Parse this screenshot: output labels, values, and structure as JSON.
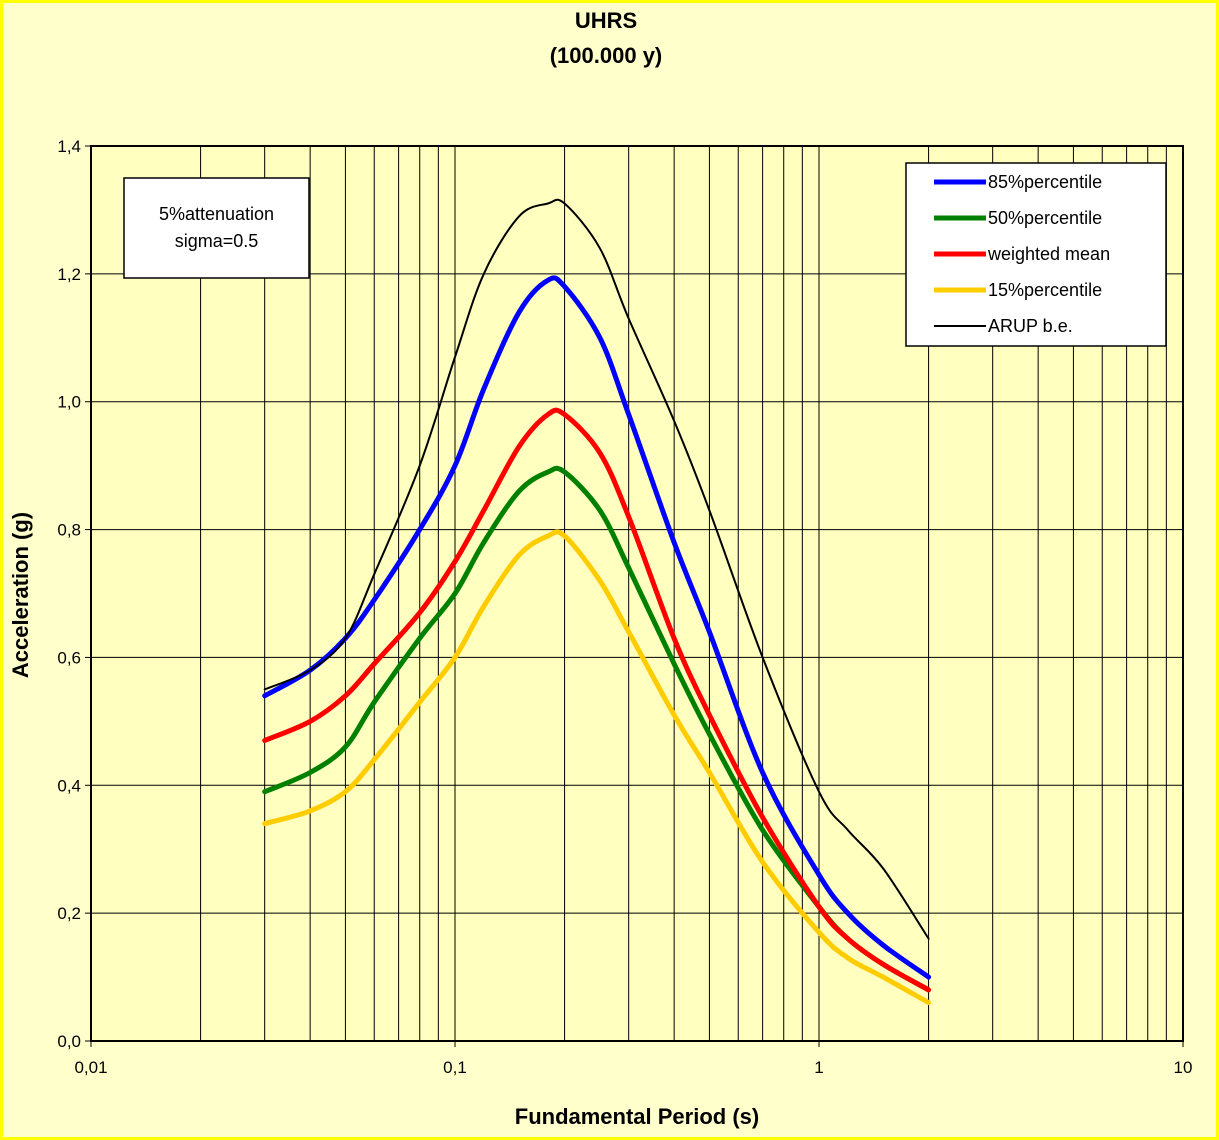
{
  "chart_data": {
    "type": "line",
    "title": "UHRS",
    "subtitle": "(100.000 y)",
    "xlabel": "Fundamental Period (s)",
    "ylabel": "Acceleration (g)",
    "x_scale": "log",
    "xlim": [
      0.01,
      10
    ],
    "ylim": [
      0,
      1.4
    ],
    "x_ticks": [
      0.01,
      0.1,
      1,
      10
    ],
    "x_tick_labels": [
      "0,01",
      "0,1",
      "1",
      "10"
    ],
    "y_ticks": [
      0,
      0.2,
      0.4,
      0.6,
      0.8,
      1.0,
      1.2,
      1.4
    ],
    "y_tick_labels": [
      "0,0",
      "0,2",
      "0,4",
      "0,6",
      "0,8",
      "1,0",
      "1,2",
      "1,4"
    ],
    "grid": true,
    "legend_position": "top-right",
    "annotation": [
      "5%attenuation",
      "sigma=0.5"
    ],
    "x": [
      0.03,
      0.04,
      0.05,
      0.06,
      0.08,
      0.1,
      0.12,
      0.15,
      0.18,
      0.2,
      0.25,
      0.3,
      0.4,
      0.5,
      0.7,
      1.0,
      1.2,
      1.5,
      2.0
    ],
    "series": [
      {
        "name": "85%percentile",
        "color": "#0000ff",
        "values": [
          0.54,
          0.58,
          0.63,
          0.69,
          0.8,
          0.9,
          1.02,
          1.14,
          1.19,
          1.18,
          1.1,
          0.98,
          0.78,
          0.64,
          0.42,
          0.26,
          0.2,
          0.15,
          0.1
        ]
      },
      {
        "name": "50%percentile",
        "color": "#008000",
        "values": [
          0.39,
          0.42,
          0.46,
          0.53,
          0.63,
          0.7,
          0.78,
          0.86,
          0.89,
          0.89,
          0.83,
          0.74,
          0.59,
          0.48,
          0.33,
          0.21,
          0.16,
          0.12,
          0.08
        ]
      },
      {
        "name": "weighted mean",
        "color": "#ff0000",
        "values": [
          0.47,
          0.5,
          0.54,
          0.59,
          0.67,
          0.75,
          0.83,
          0.93,
          0.98,
          0.98,
          0.92,
          0.82,
          0.63,
          0.51,
          0.35,
          0.21,
          0.16,
          0.12,
          0.08
        ]
      },
      {
        "name": "15%percentile",
        "color": "#ffcc00",
        "values": [
          0.34,
          0.36,
          0.39,
          0.44,
          0.53,
          0.6,
          0.68,
          0.76,
          0.79,
          0.79,
          0.72,
          0.64,
          0.51,
          0.42,
          0.28,
          0.17,
          0.13,
          0.1,
          0.06
        ]
      },
      {
        "name": "ARUP b.e.",
        "color": "#000000",
        "values": [
          0.55,
          0.58,
          0.63,
          0.73,
          0.9,
          1.07,
          1.2,
          1.29,
          1.31,
          1.31,
          1.24,
          1.13,
          0.97,
          0.83,
          0.6,
          0.39,
          0.33,
          0.27,
          0.16
        ]
      }
    ]
  }
}
